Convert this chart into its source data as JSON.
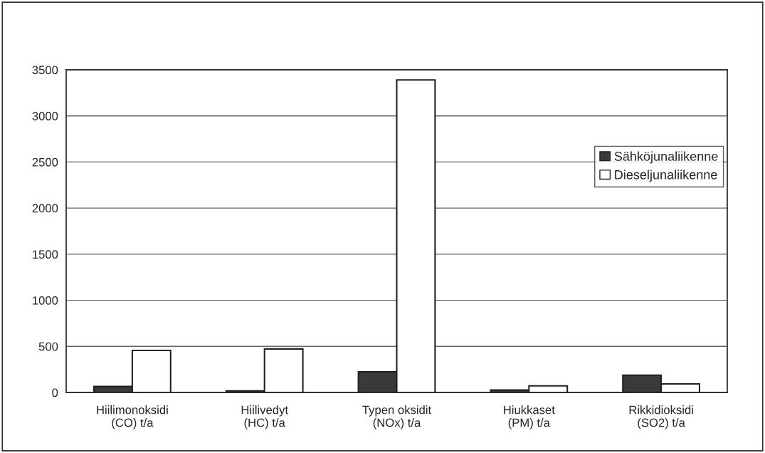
{
  "chart_data": {
    "type": "bar",
    "categories": [
      "Hiilimonoksidi\n(CO) t/a",
      "Hiilivedyt\n(HC) t/a",
      "Typen oksidit\n(NOx) t/a",
      "Hiukkaset\n(PM) t/a",
      "Rikkidioksidi\n(SO2) t/a"
    ],
    "series": [
      {
        "name": "Sähköjunaliikenne",
        "color": "#3a3a3a",
        "values": [
          65,
          18,
          223,
          26,
          187
        ]
      },
      {
        "name": "Dieseljunaliikenne",
        "color": "#ffffff",
        "values": [
          456,
          472,
          3390,
          72,
          93
        ]
      }
    ],
    "ylim": [
      0,
      3500
    ],
    "yticks": [
      0,
      500,
      1000,
      1500,
      2000,
      2500,
      3000,
      3500
    ],
    "grid": "y",
    "legend": "right"
  }
}
